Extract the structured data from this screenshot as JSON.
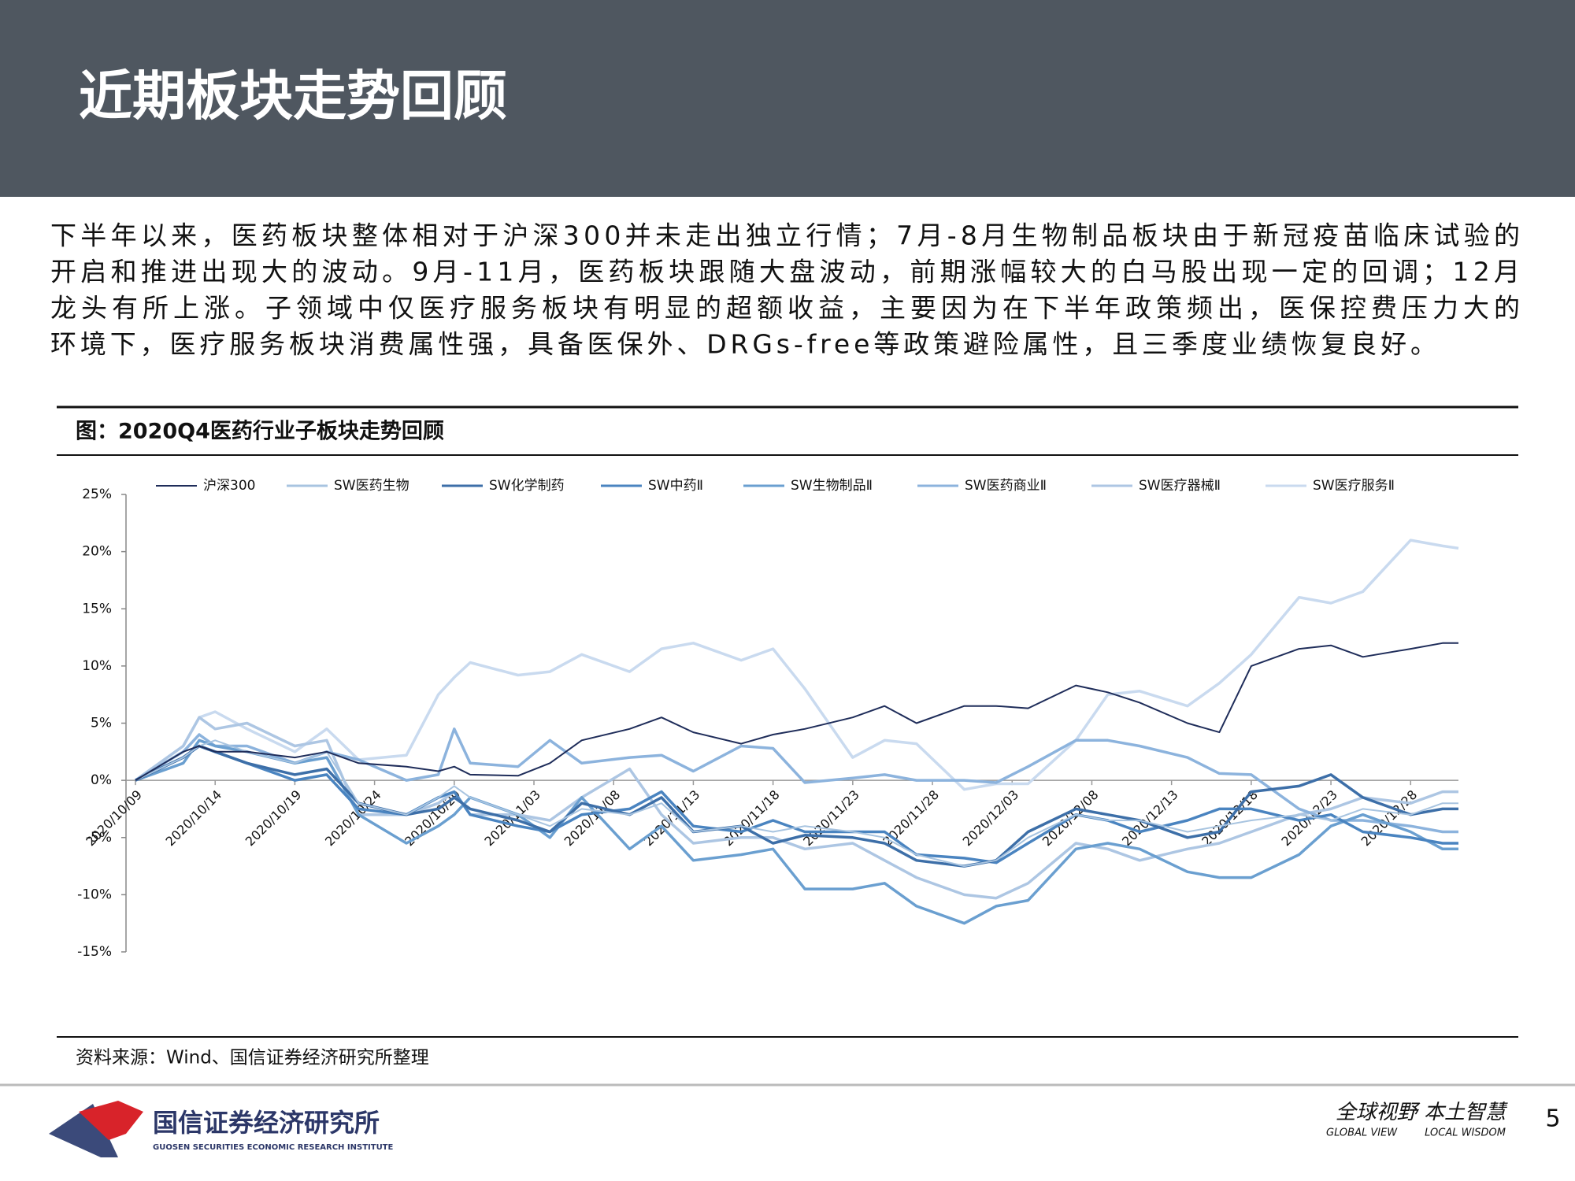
{
  "header": {
    "title": "近期板块走势回顾"
  },
  "body": [
    "下半年以来，医药板块整体相对于沪深300并未走出独立行情；7月-8月生物制品板块由于新冠疫苗临床试验的",
    "开启和推进出现大的波动。9月-11月，医药板块跟随大盘波动，前期涨幅较大的白马股出现一定的回调；12月",
    "龙头有所上涨。子领域中仅医疗服务板块有明显的超额收益，主要因为在下半年政策频出，医保控费压力大的",
    "环境下，医疗服务板块消费属性强，具备医保外、DRGs-free等政策避险属性，且三季度业绩恢复良好。"
  ],
  "chart_data": {
    "type": "line",
    "title": "图：2020Q4医药行业子板块走势回顾",
    "x": [
      "2020/10/09",
      "2020/10/12",
      "2020/10/13",
      "2020/10/14",
      "2020/10/16",
      "2020/10/19",
      "2020/10/21",
      "2020/10/23",
      "2020/10/26",
      "2020/10/28",
      "2020/10/29",
      "2020/10/30",
      "2020/11/02",
      "2020/11/04",
      "2020/11/06",
      "2020/11/09",
      "2020/11/11",
      "2020/11/13",
      "2020/11/16",
      "2020/11/18",
      "2020/11/20",
      "2020/11/23",
      "2020/11/25",
      "2020/11/27",
      "2020/11/30",
      "2020/12/02",
      "2020/12/04",
      "2020/12/07",
      "2020/12/09",
      "2020/12/11",
      "2020/12/14",
      "2020/12/16",
      "2020/12/18",
      "2020/12/21",
      "2020/12/23",
      "2020/12/25",
      "2020/12/28",
      "2020/12/30",
      "2020/12/31"
    ],
    "xlim": [
      "2020/10/09",
      "2020/12/31"
    ],
    "xticks": [
      "2020/10/09",
      "2020/10/14",
      "2020/10/19",
      "2020/10/24",
      "2020/10/29",
      "2020/11/03",
      "2020/11/08",
      "2020/11/13",
      "2020/11/18",
      "2020/11/23",
      "2020/11/28",
      "2020/12/03",
      "2020/12/08",
      "2020/12/13",
      "2020/12/18",
      "2020/12/23",
      "2020/12/28"
    ],
    "ylim": [
      -15,
      25
    ],
    "yticks": [
      {
        "value": 25,
        "label": "25%"
      },
      {
        "value": 20,
        "label": "20%"
      },
      {
        "value": 15,
        "label": "15%"
      },
      {
        "value": 10,
        "label": "10%"
      },
      {
        "value": 5,
        "label": "5%"
      },
      {
        "value": 0,
        "label": "0%"
      },
      {
        "value": -5,
        "label": "-5%"
      },
      {
        "value": -10,
        "label": "-10%"
      },
      {
        "value": -15,
        "label": "-15%"
      }
    ],
    "grid": false,
    "series": [
      {
        "name": "沪深300",
        "color": "#1f2d5a",
        "values": [
          0,
          2.5,
          3,
          2.5,
          2.5,
          2,
          2.5,
          1.5,
          1.2,
          0.8,
          1.2,
          0.5,
          0.4,
          1.5,
          3.5,
          4.5,
          5.5,
          4.2,
          3.2,
          4,
          4.5,
          5.5,
          6.5,
          5,
          6.5,
          6.5,
          6.3,
          8.3,
          7.7,
          6.8,
          5,
          4.2,
          10,
          11.5,
          11.8,
          10.8,
          11.5,
          12,
          12
        ]
      },
      {
        "name": "SW医药生物",
        "color": "#a8c4e0",
        "values": [
          0,
          2,
          3,
          3.5,
          2.5,
          1.5,
          2.5,
          -2,
          -3,
          -1.5,
          -0.5,
          -1.5,
          -3,
          -4,
          -2.5,
          -3,
          -2,
          -4.5,
          -4,
          -4.5,
          -4,
          -4.5,
          -5,
          -6.5,
          -7.5,
          -7,
          -5,
          -3,
          -3.5,
          -3.5,
          -4.5,
          -4,
          -3.5,
          -3,
          -3.5,
          -2.5,
          -3,
          -2,
          -2
        ]
      },
      {
        "name": "SW化学制药",
        "color": "#3d6fa8",
        "values": [
          0,
          2,
          3,
          2.5,
          1.5,
          0.5,
          1,
          -2,
          -3,
          -2.5,
          -1.5,
          -2.5,
          -3.5,
          -4.5,
          -2,
          -3,
          -1.5,
          -4.5,
          -4,
          -5.5,
          -4.8,
          -5,
          -5.5,
          -7,
          -7.5,
          -7,
          -4.5,
          -2.5,
          -3,
          -3.5,
          -5,
          -4.5,
          -1,
          -0.5,
          0.5,
          -1.5,
          -3,
          -2.5,
          -2.5
        ]
      },
      {
        "name": "SW中药Ⅱ",
        "color": "#4a84c0",
        "values": [
          0,
          2,
          3,
          2.5,
          1.5,
          0,
          0.5,
          -2.5,
          -3,
          -1.5,
          -1,
          -3,
          -4,
          -4.5,
          -3,
          -2.5,
          -1,
          -4,
          -4.5,
          -3.5,
          -4.5,
          -4.5,
          -4.5,
          -6.5,
          -6.8,
          -7.2,
          -5.5,
          -3,
          -3.5,
          -4.5,
          -3.5,
          -2.5,
          -2.5,
          -3.5,
          -3,
          -4.5,
          -5,
          -5.5,
          -5.5
        ]
      },
      {
        "name": "SW生物制品Ⅱ",
        "color": "#6a9fd0",
        "values": [
          0,
          1.5,
          3.5,
          3,
          2.5,
          1.5,
          2,
          -3,
          -5.5,
          -4,
          -3,
          -1.5,
          -3,
          -5,
          -1.5,
          -6,
          -4,
          -7,
          -6.5,
          -6,
          -9.5,
          -9.5,
          -9,
          -11,
          -12.5,
          -11,
          -10.5,
          -6,
          -5.5,
          -6,
          -8,
          -8.5,
          -8.5,
          -6.5,
          -4,
          -3,
          -4.5,
          -6,
          -6
        ]
      },
      {
        "name": "SW医药商业Ⅱ",
        "color": "#8cb3dd",
        "values": [
          0,
          2.5,
          4,
          3,
          3,
          1.5,
          2.5,
          1.8,
          0,
          0.5,
          4.5,
          1.5,
          1.2,
          3.5,
          1.5,
          2,
          2.2,
          0.8,
          3,
          2.8,
          -0.2,
          0.2,
          0.5,
          0,
          0,
          -0.2,
          1.2,
          3.5,
          3.5,
          3,
          2,
          0.6,
          0.5,
          -2.5,
          -3.5,
          -3.5,
          -4,
          -4.5,
          -4.5
        ]
      },
      {
        "name": "SW医疗器械Ⅱ",
        "color": "#adc6e3",
        "values": [
          0,
          3,
          5.5,
          4.5,
          5,
          3,
          3.5,
          -3,
          -3,
          -2,
          -1,
          -3,
          -3,
          -3.5,
          -1.5,
          1,
          -3,
          -5.5,
          -5,
          -5,
          -6,
          -5.5,
          -7,
          -8.5,
          -10,
          -10.3,
          -9,
          -5.5,
          -6,
          -7,
          -6,
          -5.5,
          -4.5,
          -3,
          -2.5,
          -1.5,
          -2,
          -1,
          -1
        ]
      },
      {
        "name": "SW医疗服务Ⅱ",
        "color": "#c9daef",
        "values": [
          0,
          3,
          5.5,
          6,
          4.5,
          2.5,
          4.5,
          1.8,
          2.2,
          7.5,
          9,
          10.3,
          9.2,
          9.5,
          11,
          9.5,
          11.5,
          12,
          10.5,
          11.5,
          8,
          2,
          3.5,
          3.2,
          -0.8,
          -0.3,
          -0.3,
          3.5,
          7.5,
          7.8,
          6.5,
          8.5,
          11,
          16,
          15.5,
          16.5,
          21,
          20.5,
          20.3
        ]
      }
    ],
    "source": "资料来源：Wind、国信证券经济研究所整理"
  },
  "footer": {
    "logo": "国信证券经济研究所",
    "logo_en": "GUOSEN SECURITIES ECONOMIC RESEARCH INSTITUTE",
    "slogan": "全球视野 本土智慧",
    "slogan_en_1": "GLOBAL VIEW",
    "slogan_en_2": "LOCAL WISDOM",
    "page": "5"
  }
}
